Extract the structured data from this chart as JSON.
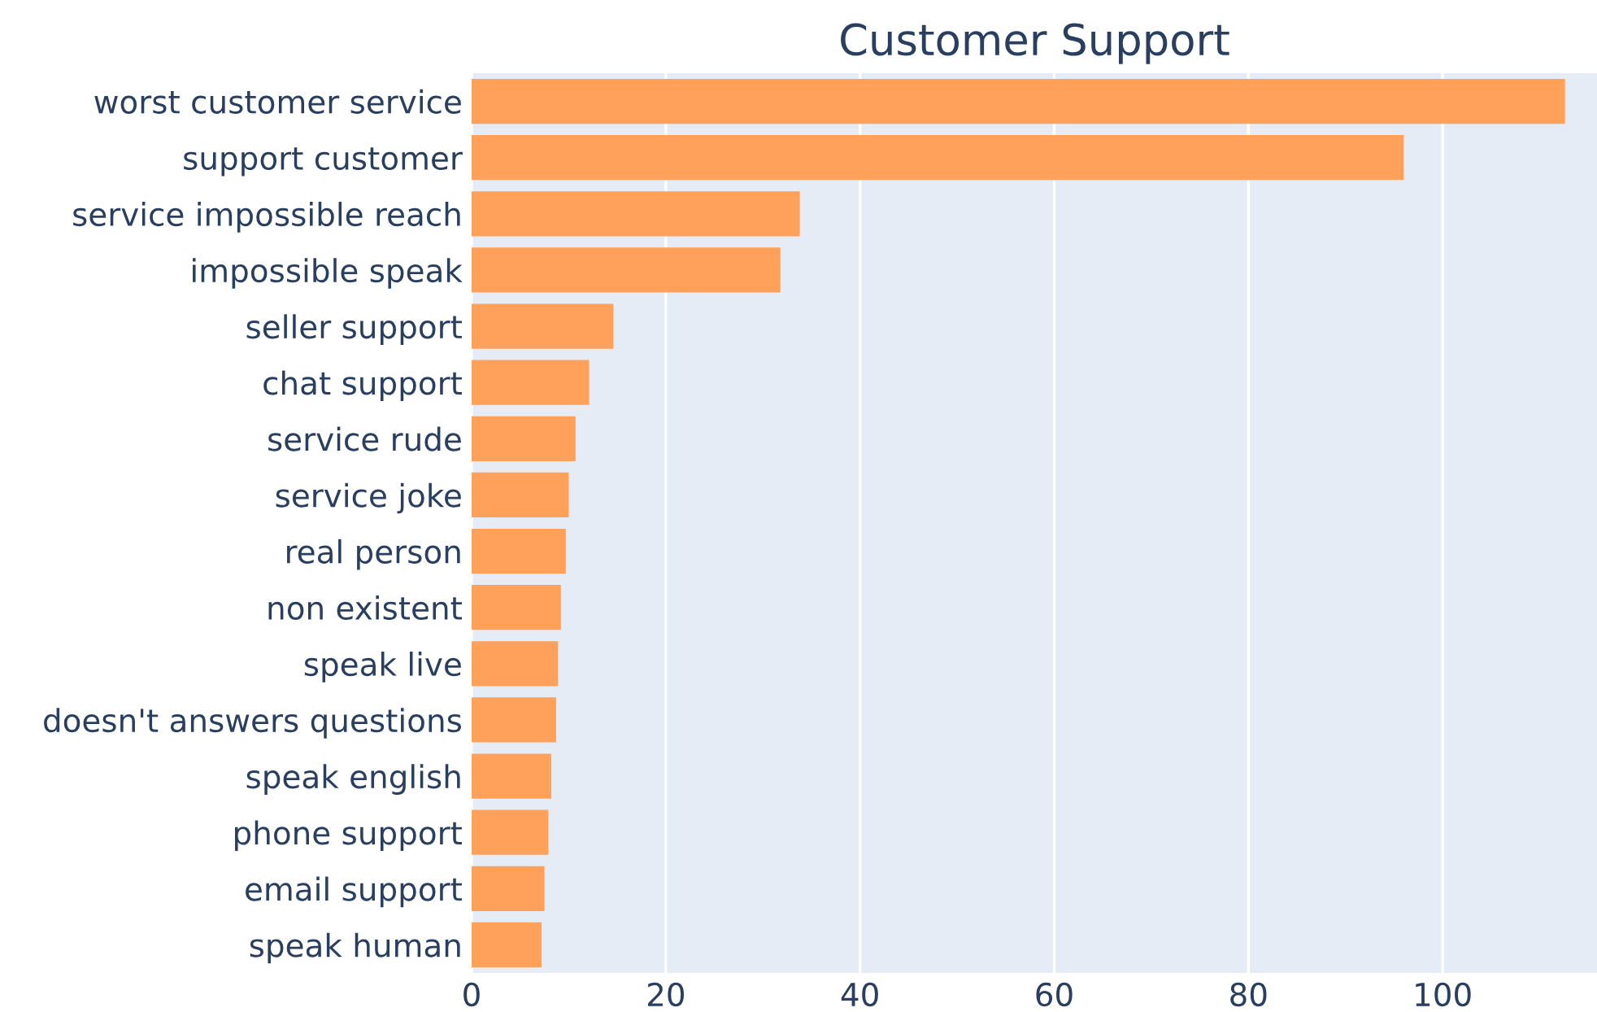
{
  "chart_data": {
    "type": "bar",
    "orientation": "horizontal",
    "title": "Customer Support",
    "categories": [
      "worst customer service",
      "support customer",
      "service impossible reach",
      "impossible speak",
      "seller support",
      "chat support",
      "service rude",
      "service joke",
      "real person",
      "non existent",
      "speak live",
      "doesn't answers questions",
      "speak english",
      "phone support",
      "email support",
      "speak human"
    ],
    "values": [
      112.6,
      96,
      33.8,
      31.8,
      14.6,
      12.1,
      10.7,
      10.0,
      9.7,
      9.2,
      8.9,
      8.7,
      8.2,
      7.9,
      7.5,
      7.2
    ],
    "color": "#ffa15a",
    "xlim": [
      0,
      115.9
    ],
    "xticks": [
      0,
      20,
      40,
      60,
      80,
      100
    ],
    "grid": "x"
  }
}
